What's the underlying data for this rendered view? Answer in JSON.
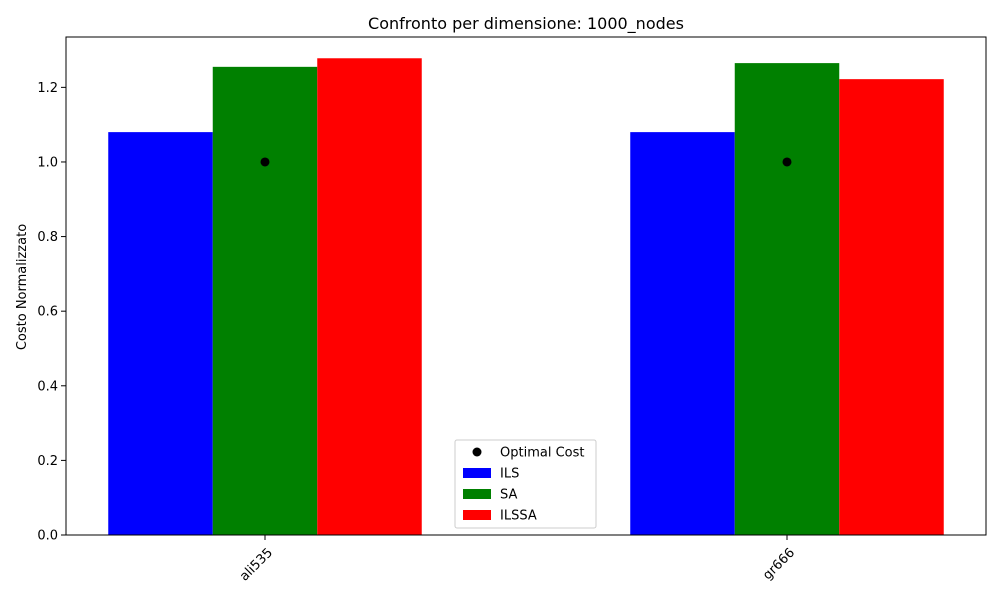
{
  "chart_data": {
    "type": "bar",
    "title": "Confronto per dimensione: 1000_nodes",
    "xlabel": "",
    "ylabel": "Costo Normalizzato",
    "categories": [
      "ali535",
      "gr666"
    ],
    "series": [
      {
        "name": "ILS",
        "color": "#0000ff",
        "values": [
          1.08,
          1.08
        ]
      },
      {
        "name": "SA",
        "color": "#008000",
        "values": [
          1.255,
          1.265
        ]
      },
      {
        "name": "ILSSA",
        "color": "#ff0000",
        "values": [
          1.278,
          1.222
        ]
      }
    ],
    "optimal": {
      "name": "Optimal Cost",
      "color": "#000000",
      "values": [
        1.0,
        1.0
      ]
    },
    "ylim": [
      0,
      1.335
    ],
    "yticks": [
      "0.0",
      "0.2",
      "0.4",
      "0.6",
      "0.8",
      "1.0",
      "1.2"
    ],
    "legend_position": "lower center",
    "grid": false
  }
}
